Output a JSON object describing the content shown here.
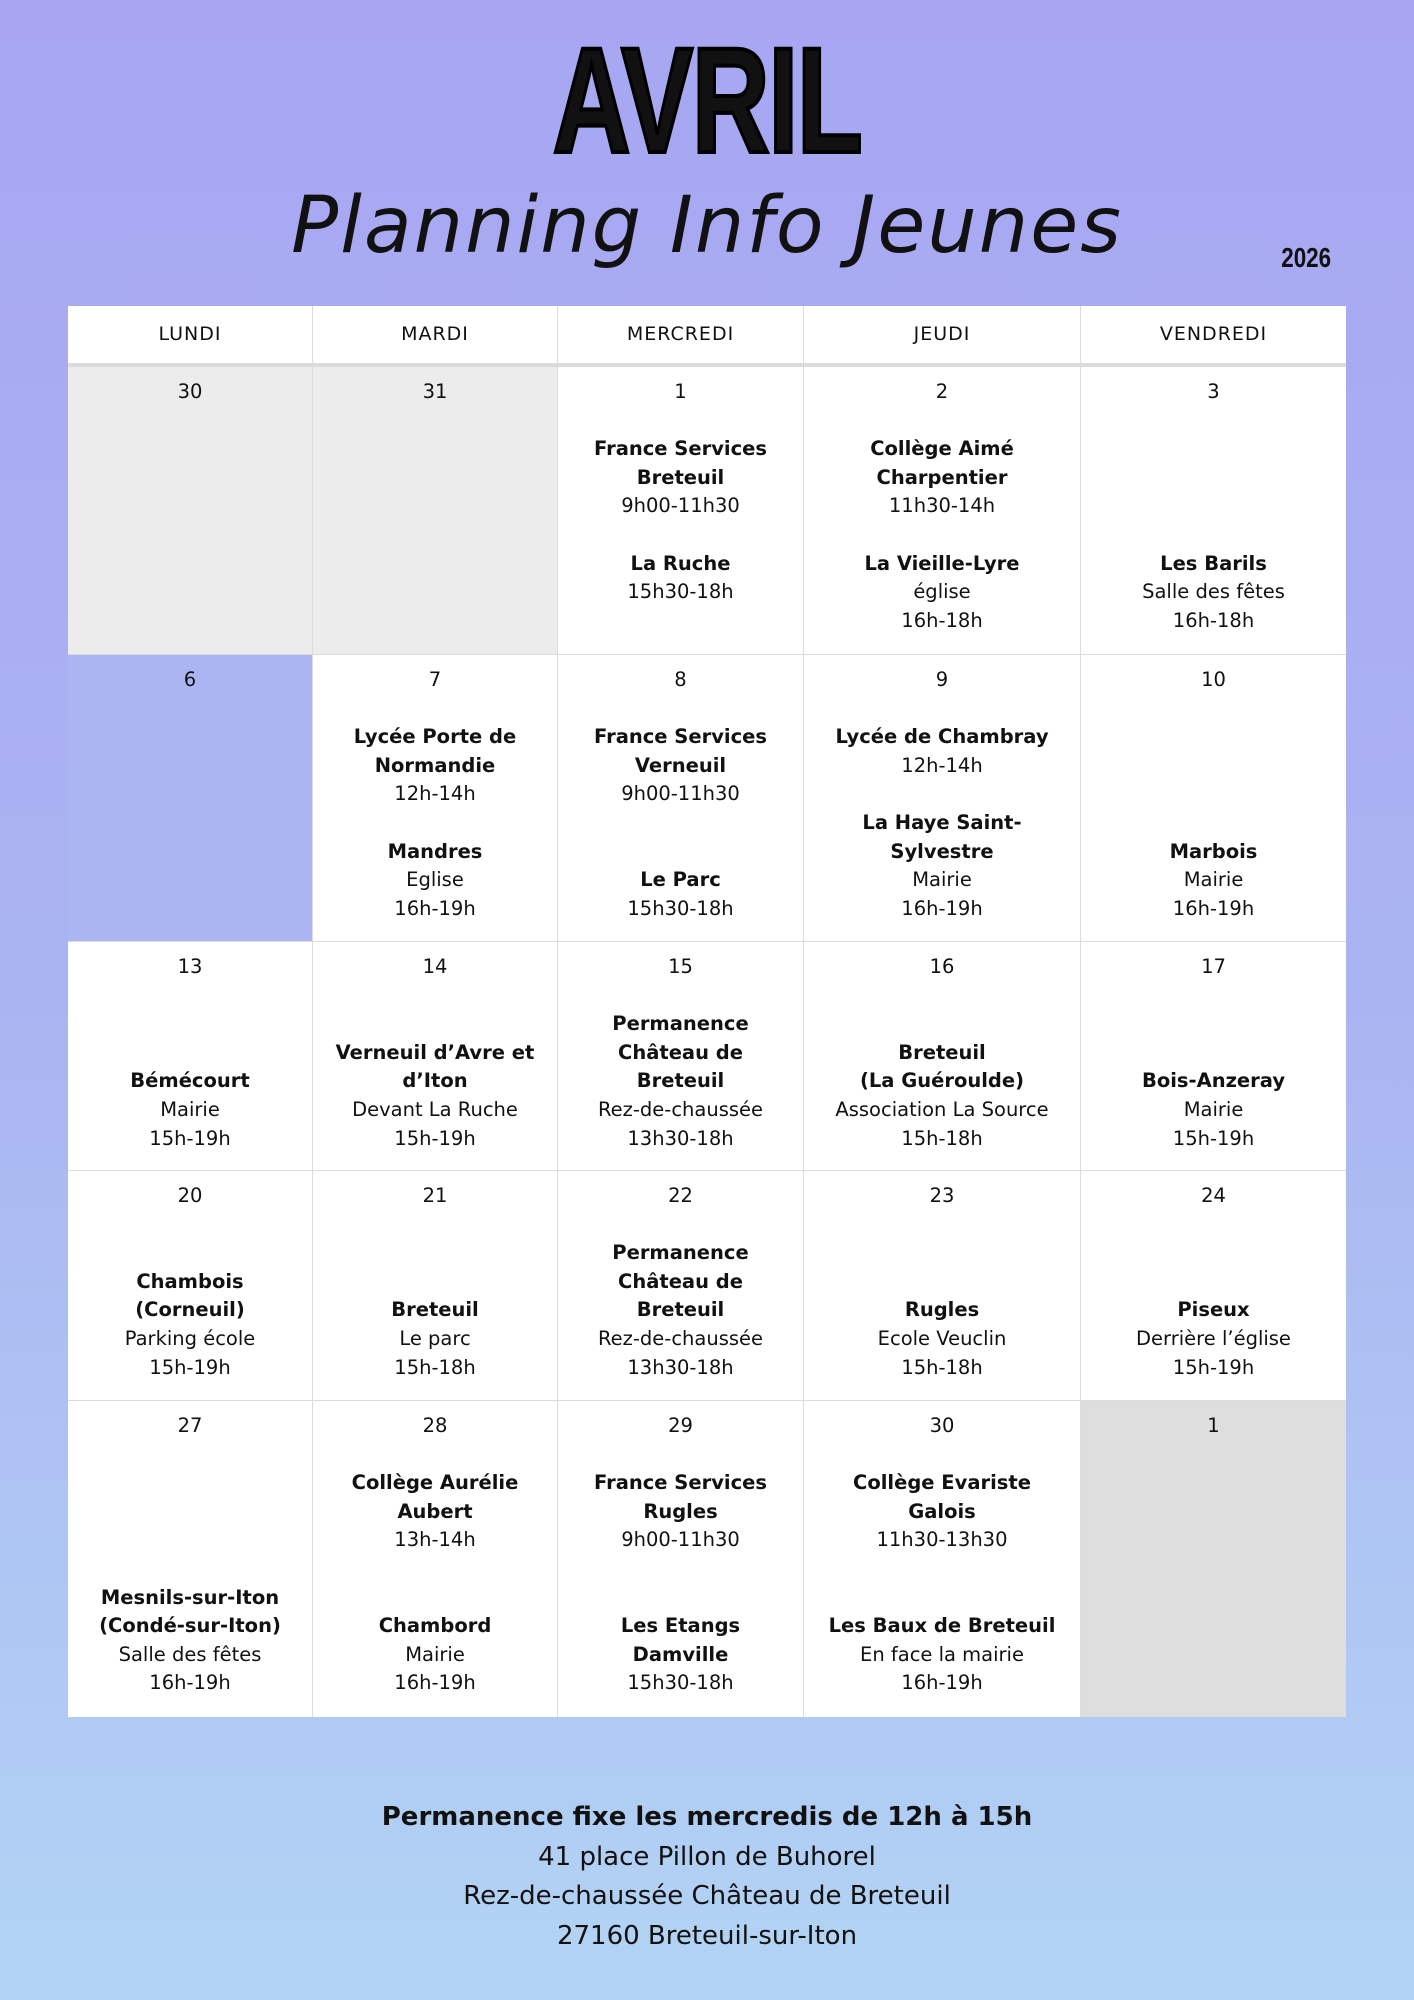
{
  "header": {
    "month": "AVRIL",
    "subtitle": "Planning Info Jeunes",
    "year": "2026"
  },
  "days": [
    "LUNDI",
    "MARDI",
    "MERCREDI",
    "JEUDI",
    "VENDREDI"
  ],
  "colors": {
    "highlight": "#abb5f2",
    "muted": "#ececec",
    "off": "#dedede"
  },
  "weeks": [
    [
      {
        "day": "30",
        "state": "muted",
        "events": []
      },
      {
        "day": "31",
        "state": "muted",
        "events": []
      },
      {
        "day": "1",
        "events": [
          {
            "title": [
              "France Services",
              "Breteuil"
            ],
            "details": [
              "9h00-11h30"
            ]
          },
          {
            "title": [
              "La Ruche"
            ],
            "details": [
              "15h30-18h"
            ]
          }
        ]
      },
      {
        "day": "2",
        "events": [
          {
            "title": [
              "Collège Aimé",
              "Charpentier"
            ],
            "details": [
              "11h30-14h"
            ]
          },
          {
            "title": [
              "La Vieille-Lyre"
            ],
            "details": [
              "église",
              "16h-18h"
            ]
          }
        ]
      },
      {
        "day": "3",
        "events": [
          {
            "title": [
              "Les Barils"
            ],
            "details": [
              "Salle des fêtes",
              "16h-18h"
            ]
          }
        ]
      }
    ],
    [
      {
        "day": "6",
        "state": "highlight",
        "events": []
      },
      {
        "day": "7",
        "events": [
          {
            "title": [
              "Lycée Porte de",
              "Normandie"
            ],
            "details": [
              "12h-14h"
            ]
          },
          {
            "title": [
              "Mandres"
            ],
            "details": [
              "Eglise",
              "16h-19h"
            ]
          }
        ]
      },
      {
        "day": "8",
        "events": [
          {
            "title": [
              "France Services",
              "Verneuil"
            ],
            "details": [
              "9h00-11h30"
            ]
          },
          {
            "title": [
              "Le Parc"
            ],
            "details": [
              "15h30-18h"
            ]
          }
        ]
      },
      {
        "day": "9",
        "events": [
          {
            "title": [
              "Lycée de Chambray"
            ],
            "details": [
              "12h-14h"
            ]
          },
          {
            "title": [
              "La Haye Saint-",
              "Sylvestre"
            ],
            "details": [
              "Mairie",
              "16h-19h"
            ]
          }
        ]
      },
      {
        "day": "10",
        "events": [
          {
            "title": [
              "Marbois"
            ],
            "details": [
              "Mairie",
              "16h-19h"
            ]
          }
        ]
      }
    ],
    [
      {
        "day": "13",
        "events": [
          {
            "title": [
              "Bémécourt"
            ],
            "details": [
              "Mairie",
              "15h-19h"
            ]
          }
        ]
      },
      {
        "day": "14",
        "events": [
          {
            "title": [
              "Verneuil d’Avre et",
              "d’Iton"
            ],
            "details": [
              "Devant La Ruche",
              "15h-19h"
            ]
          }
        ]
      },
      {
        "day": "15",
        "events": [
          {
            "title": [
              "Permanence",
              "Château de",
              "Breteuil"
            ],
            "details": [
              "Rez-de-chaussée",
              "13h30-18h"
            ]
          }
        ]
      },
      {
        "day": "16",
        "events": [
          {
            "title": [
              "Breteuil",
              "(La Guéroulde)"
            ],
            "details": [
              "Association La Source",
              "15h-18h"
            ]
          }
        ]
      },
      {
        "day": "17",
        "events": [
          {
            "title": [
              "Bois-Anzeray"
            ],
            "details": [
              "Mairie",
              "15h-19h"
            ]
          }
        ]
      }
    ],
    [
      {
        "day": "20",
        "events": [
          {
            "title": [
              "Chambois",
              "(Corneuil)"
            ],
            "details": [
              "Parking école",
              "15h-19h"
            ]
          }
        ]
      },
      {
        "day": "21",
        "events": [
          {
            "title": [
              "Breteuil"
            ],
            "details": [
              "Le parc",
              "15h-18h"
            ]
          }
        ]
      },
      {
        "day": "22",
        "events": [
          {
            "title": [
              "Permanence",
              "Château de",
              "Breteuil"
            ],
            "details": [
              "Rez-de-chaussée",
              "13h30-18h"
            ]
          }
        ]
      },
      {
        "day": "23",
        "events": [
          {
            "title": [
              "Rugles"
            ],
            "details": [
              "Ecole Veuclin",
              "15h-18h"
            ]
          }
        ]
      },
      {
        "day": "24",
        "events": [
          {
            "title": [
              "Piseux"
            ],
            "details": [
              "Derrière l’église",
              "15h-19h"
            ]
          }
        ]
      }
    ],
    [
      {
        "day": "27",
        "events": [
          {
            "title": [
              "Mesnils-sur-Iton",
              "(Condé-sur-Iton)"
            ],
            "details": [
              "Salle des fêtes",
              "16h-19h"
            ]
          }
        ]
      },
      {
        "day": "28",
        "events": [
          {
            "title": [
              "Collège Aurélie",
              "Aubert"
            ],
            "details": [
              "13h-14h"
            ]
          },
          {
            "title": [
              "Chambord"
            ],
            "details": [
              "Mairie",
              "16h-19h"
            ]
          }
        ]
      },
      {
        "day": "29",
        "events": [
          {
            "title": [
              "France Services",
              "Rugles"
            ],
            "details": [
              "9h00-11h30"
            ]
          },
          {
            "title": [
              "Les Etangs",
              "Damville"
            ],
            "details": [
              "15h30-18h"
            ]
          }
        ]
      },
      {
        "day": "30",
        "events": [
          {
            "title": [
              "Collège Evariste",
              "Galois"
            ],
            "details": [
              "11h30-13h30"
            ]
          },
          {
            "title": [
              "Les Baux de Breteuil"
            ],
            "details": [
              "En face la mairie",
              "16h-19h"
            ]
          }
        ]
      },
      {
        "day": "1",
        "state": "off",
        "events": []
      }
    ]
  ],
  "footer": {
    "title": "Permanence fixe les mercredis de 12h à 15h",
    "lines": [
      "41 place Pillon de Buhorel",
      "Rez-de-chaussée Château de Breteuil",
      "27160 Breteuil-sur-Iton"
    ]
  }
}
